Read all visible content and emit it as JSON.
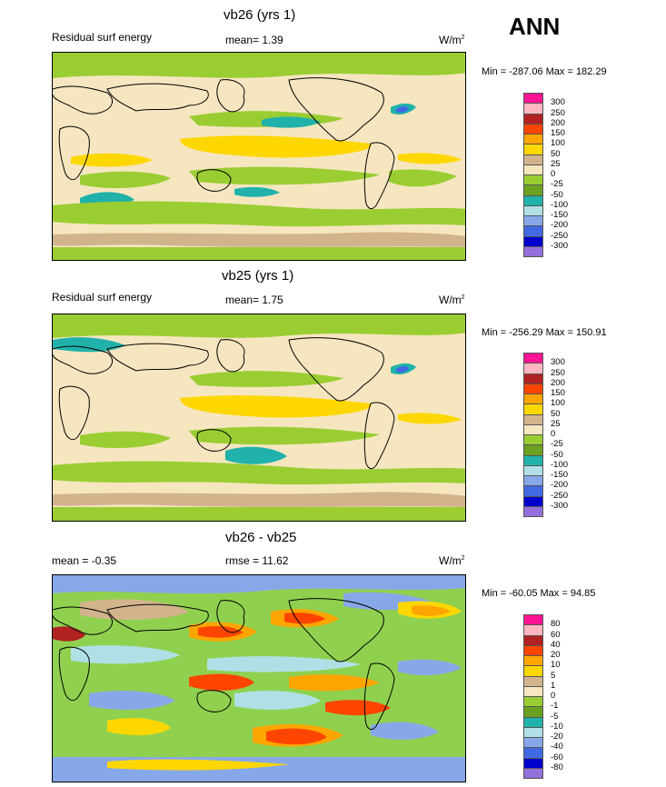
{
  "season": "ANN",
  "panels": [
    {
      "title": "vb26 (yrs 1)",
      "left_label": "Residual surf energy",
      "center_label": "mean=  1.39",
      "right_label": "W/m",
      "right_sup": "2",
      "minmax": "Min = -287.06 Max = 182.29",
      "legend_labels": [
        "300",
        "250",
        "200",
        "150",
        "100",
        "50",
        "25",
        "0",
        "-25",
        "-50",
        "-100",
        "-150",
        "-200",
        "-250",
        "-300"
      ]
    },
    {
      "title": "vb25 (yrs 1)",
      "left_label": "Residual surf energy",
      "center_label": "mean=  1.75",
      "right_label": "W/m",
      "right_sup": "2",
      "minmax": "Min = -256.29 Max = 150.91",
      "legend_labels": [
        "300",
        "250",
        "200",
        "150",
        "100",
        "50",
        "25",
        "0",
        "-25",
        "-50",
        "-100",
        "-150",
        "-200",
        "-250",
        "-300"
      ]
    },
    {
      "title": "vb26 - vb25",
      "left_label": "mean =  -0.35",
      "center_label": "rmse =  11.62",
      "right_label": "W/m",
      "right_sup": "2",
      "minmax": "Min = -60.05 Max =  94.85",
      "legend_labels": [
        "80",
        "60",
        "40",
        "20",
        "10",
        "5",
        "1",
        "0",
        "-1",
        "-5",
        "-10",
        "-20",
        "-40",
        "-60",
        "-80"
      ]
    }
  ],
  "colors": {
    "palette": [
      "#ff1493",
      "#ffb6c1",
      "#b22222",
      "#ff4500",
      "#ffa500",
      "#ffd700",
      "#d2b48c",
      "#f5e6c0",
      "#9acd32",
      "#6aa121",
      "#20b2aa",
      "#b0e0e6",
      "#87a8e8",
      "#4169e1",
      "#0000cd",
      "#9370db"
    ],
    "field_bg": "#f5e6c0",
    "diff_bg": "#8fd14f",
    "land_outline": "#000000"
  },
  "chart_data": [
    {
      "type": "heatmap",
      "title": "vb26 (yrs 1)",
      "subtitle": "Residual surf energy",
      "units": "W/m2",
      "mean": 1.39,
      "min": -287.06,
      "max": 182.29,
      "contour_levels": [
        -300,
        -250,
        -200,
        -150,
        -100,
        -50,
        -25,
        0,
        25,
        50,
        100,
        150,
        200,
        250,
        300
      ]
    },
    {
      "type": "heatmap",
      "title": "vb25 (yrs 1)",
      "subtitle": "Residual surf energy",
      "units": "W/m2",
      "mean": 1.75,
      "min": -256.29,
      "max": 150.91,
      "contour_levels": [
        -300,
        -250,
        -200,
        -150,
        -100,
        -50,
        -25,
        0,
        25,
        50,
        100,
        150,
        200,
        250,
        300
      ]
    },
    {
      "type": "heatmap",
      "title": "vb26 - vb25",
      "units": "W/m2",
      "mean": -0.35,
      "rmse": 11.62,
      "min": -60.05,
      "max": 94.85,
      "contour_levels": [
        -80,
        -60,
        -40,
        -20,
        -10,
        -5,
        -1,
        0,
        1,
        5,
        10,
        20,
        40,
        60,
        80
      ]
    }
  ]
}
